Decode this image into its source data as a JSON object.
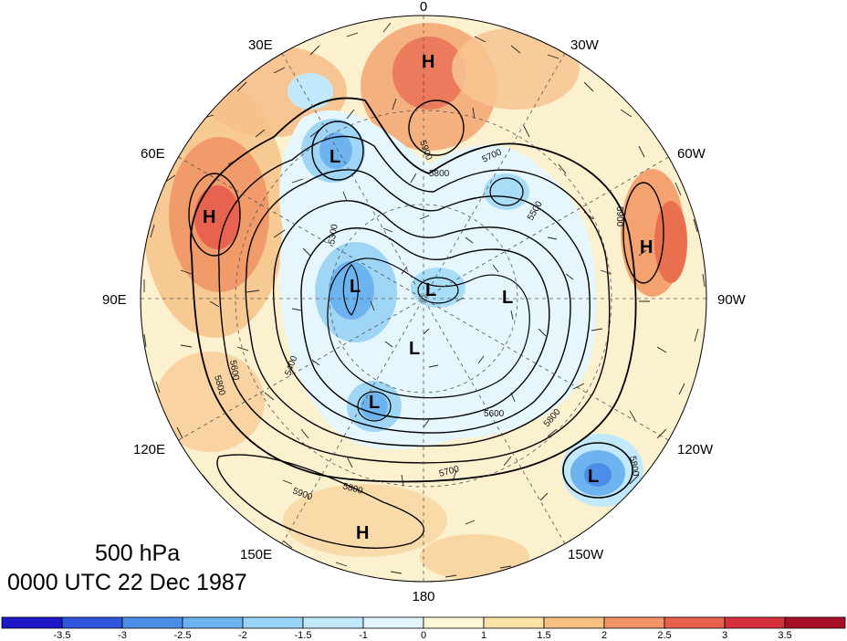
{
  "caption": {
    "level": "500 hPa",
    "datetime": "0000 UTC 22 Dec 1987"
  },
  "longitude_labels": [
    "0",
    "30W",
    "60W",
    "90W",
    "120W",
    "150W",
    "180",
    "150E",
    "120E",
    "90E",
    "60E",
    "30E"
  ],
  "contour_labels": [
    "5900",
    "5800",
    "5700",
    "5600",
    "5500",
    "5400",
    "5300"
  ],
  "centers": [
    {
      "type": "H",
      "region": "North Atlantic / Greenland Sea"
    },
    {
      "type": "H",
      "region": "Western Siberia"
    },
    {
      "type": "H",
      "region": "Eastern North America"
    },
    {
      "type": "H",
      "region": "North Pacific"
    },
    {
      "type": "L",
      "region": "Scandinavia"
    },
    {
      "type": "L",
      "region": "Siberian Arctic"
    },
    {
      "type": "L",
      "region": "Central Arctic"
    },
    {
      "type": "L",
      "region": "Canadian Arctic"
    },
    {
      "type": "L",
      "region": "Arctic Ocean near pole"
    },
    {
      "type": "L",
      "region": "Northeast Siberia"
    },
    {
      "type": "L",
      "region": "Northeast Pacific"
    }
  ],
  "colorbar": {
    "ticks": [
      "-3.5",
      "-3",
      "-2.5",
      "-2",
      "-1.5",
      "-1",
      "0",
      "1",
      "1.5",
      "2",
      "2.5",
      "3",
      "3.5"
    ],
    "colors": [
      "#1e18c8",
      "#2f55dc",
      "#4a8ee8",
      "#6cb3f0",
      "#98d4f7",
      "#c2e9fb",
      "#e0f5fd",
      "#fdf7d8",
      "#fbe3a6",
      "#f7bf82",
      "#f29468",
      "#e9604f",
      "#d6303a",
      "#a70f26"
    ]
  }
}
